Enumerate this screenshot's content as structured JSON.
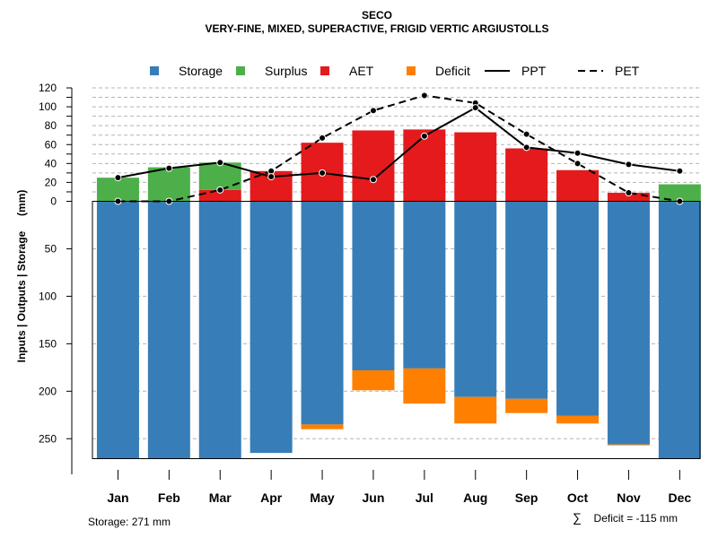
{
  "chart_data": {
    "type": "bar",
    "title": "SECO",
    "subtitle": "VERY-FINE, MIXED, SUPERACTIVE, FRIGID VERTIC ARGIUSTOLLS",
    "ylabel": "Inputs | Outputs | Storage     (mm)",
    "categories": [
      "Jan",
      "Feb",
      "Mar",
      "Apr",
      "May",
      "Jun",
      "Jul",
      "Aug",
      "Sep",
      "Oct",
      "Nov",
      "Dec"
    ],
    "ylim_upper": [
      0,
      120
    ],
    "ylim_lower": [
      0,
      271
    ],
    "upper_ticks": [
      0,
      10,
      20,
      30,
      40,
      50,
      60,
      70,
      80,
      90,
      100,
      110,
      120
    ],
    "upper_tick_labels": [
      "0",
      "20",
      "40",
      "60",
      "80",
      "100",
      "120"
    ],
    "lower_tick_labels": [
      "50",
      "100",
      "150",
      "200",
      "250"
    ],
    "legend_position": "top",
    "legend": [
      {
        "label": "Storage",
        "kind": "square",
        "color": "#377EB8"
      },
      {
        "label": "Surplus",
        "kind": "square",
        "color": "#4DAF4A"
      },
      {
        "label": "AET",
        "kind": "square",
        "color": "#E41A1C"
      },
      {
        "label": "Deficit",
        "kind": "square",
        "color": "#FF7F00"
      },
      {
        "label": "PPT",
        "kind": "solid-line",
        "color": "#000000"
      },
      {
        "label": "PET",
        "kind": "dashed-line",
        "color": "#000000"
      }
    ],
    "series": [
      {
        "name": "Storage",
        "color": "#377EB8",
        "values": [
          271,
          271,
          271,
          265,
          235,
          178,
          176,
          206,
          208,
          226,
          256,
          271
        ]
      },
      {
        "name": "Deficit",
        "color": "#FF7F00",
        "values": [
          0,
          0,
          0,
          0,
          5,
          21,
          37,
          28,
          15,
          8,
          1,
          0
        ]
      },
      {
        "name": "AET",
        "color": "#E41A1C",
        "values": [
          0,
          0,
          12,
          32,
          62,
          75,
          76,
          73,
          56,
          33,
          9,
          0
        ]
      },
      {
        "name": "Surplus",
        "color": "#4DAF4A",
        "values": [
          25,
          36,
          29,
          0,
          0,
          0,
          0,
          0,
          0,
          0,
          0,
          18
        ]
      },
      {
        "name": "PPT",
        "color": "#000000",
        "style": "solid",
        "values": [
          25,
          35,
          41,
          26,
          30,
          23,
          69,
          99,
          57,
          51,
          39,
          32
        ]
      },
      {
        "name": "PET",
        "color": "#000000",
        "style": "dashed",
        "values": [
          0,
          0,
          12,
          32,
          67,
          96,
          112,
          104,
          71,
          40,
          9,
          0
        ]
      }
    ],
    "footnotes": {
      "storage": "Storage: 271 mm",
      "deficit_symbol": "∑",
      "deficit": "Deficit = -115 mm"
    }
  }
}
